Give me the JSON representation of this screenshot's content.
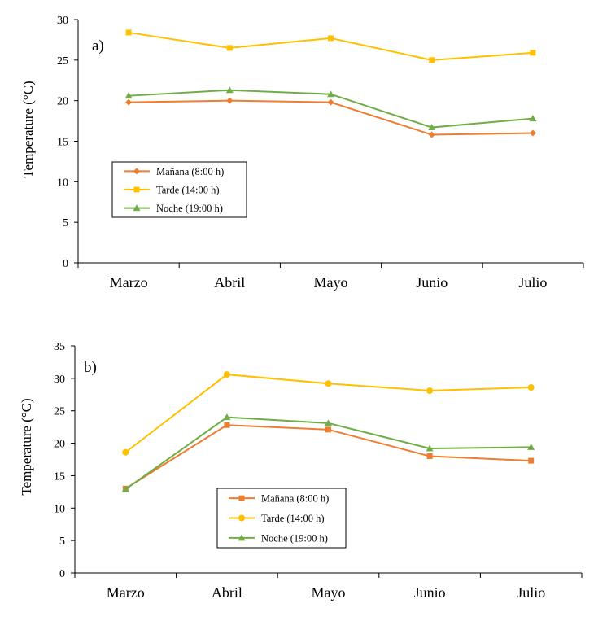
{
  "chart_data": [
    {
      "type": "line",
      "panel_label": "a)",
      "ylabel": "Temperature (°C)",
      "categories": [
        "Marzo",
        "Abril",
        "Mayo",
        "Junio",
        "Julio"
      ],
      "ylim": [
        0,
        30
      ],
      "yticks": [
        "0",
        "5",
        "10",
        "15",
        "20",
        "25",
        "30"
      ],
      "legend_position": "lower-left",
      "series": [
        {
          "name": "Mañana (8:00 h)",
          "color": "#ED7D31",
          "marker": "diamond",
          "values": [
            19.8,
            20.0,
            19.8,
            15.8,
            16.0
          ]
        },
        {
          "name": "Tarde (14:00 h)",
          "color": "#FFC000",
          "marker": "square",
          "values": [
            28.4,
            26.5,
            27.7,
            25.0,
            25.9
          ]
        },
        {
          "name": "Noche (19:00 h)",
          "color": "#70AD47",
          "marker": "triangle",
          "values": [
            20.6,
            21.3,
            20.8,
            16.7,
            17.8
          ]
        }
      ]
    },
    {
      "type": "line",
      "panel_label": "b)",
      "ylabel": "Temperature (°C)",
      "categories": [
        "Marzo",
        "Abril",
        "Mayo",
        "Junio",
        "Julio"
      ],
      "ylim": [
        0,
        35
      ],
      "yticks": [
        "0",
        "5",
        "10",
        "15",
        "20",
        "25",
        "30",
        "35"
      ],
      "legend_position": "lower-center",
      "series": [
        {
          "name": "Mañana (8:00 h)",
          "color": "#ED7D31",
          "marker": "square",
          "values": [
            13.0,
            22.8,
            22.1,
            18.0,
            17.3
          ]
        },
        {
          "name": "Tarde (14:00 h)",
          "color": "#FFC000",
          "marker": "circle",
          "values": [
            18.6,
            30.6,
            29.2,
            28.1,
            28.6
          ]
        },
        {
          "name": "Noche (19:00 h)",
          "color": "#70AD47",
          "marker": "triangle",
          "values": [
            12.9,
            24.0,
            23.1,
            19.2,
            19.4
          ]
        }
      ]
    }
  ]
}
